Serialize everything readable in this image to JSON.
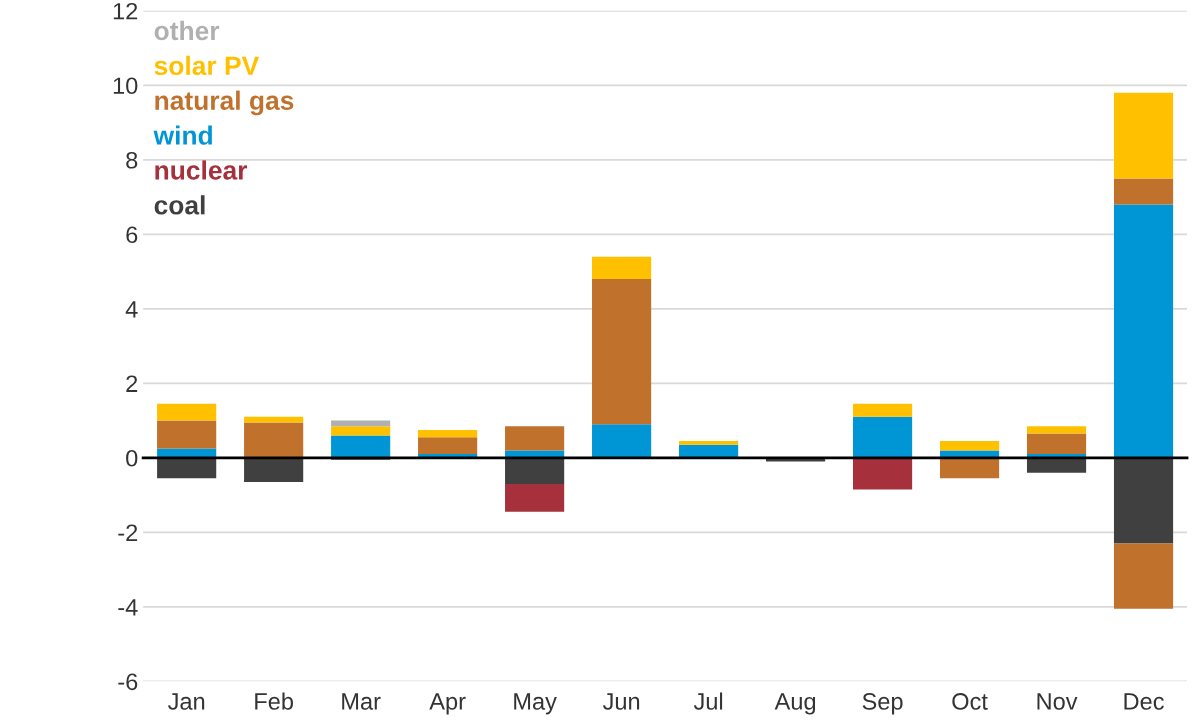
{
  "chart_data": {
    "type": "bar",
    "stacked": true,
    "categories": [
      "Jan",
      "Feb",
      "Mar",
      "Apr",
      "May",
      "Jun",
      "Jul",
      "Aug",
      "Sep",
      "Oct",
      "Nov",
      "Dec"
    ],
    "series": [
      {
        "name": "coal",
        "color": "#404040",
        "values": [
          -0.55,
          -0.65,
          -0.05,
          0,
          -0.7,
          0,
          0,
          -0.1,
          0,
          0,
          -0.4,
          -2.3
        ]
      },
      {
        "name": "nuclear",
        "color": "#a6303b",
        "values": [
          0,
          0,
          0,
          0,
          -0.75,
          0,
          0,
          0,
          -0.85,
          0,
          0,
          0
        ]
      },
      {
        "color": "#c0712b",
        "values": [
          0,
          0,
          0,
          0,
          0,
          0,
          0,
          0,
          0,
          -0.55,
          0,
          -1.75
        ]
      },
      {
        "name": "wind",
        "color": "#0096d6",
        "values": [
          0.25,
          0,
          0.6,
          0.1,
          0.2,
          0.9,
          0.35,
          0,
          1.1,
          0.2,
          0.1,
          6.8
        ]
      },
      {
        "name": "natural gas",
        "color": "#c0712b",
        "values": [
          0.75,
          0.95,
          0,
          0.45,
          0.65,
          3.9,
          0,
          0,
          0,
          0,
          0.55,
          0.7
        ]
      },
      {
        "name": "solar PV",
        "color": "#ffc000",
        "values": [
          0.45,
          0.15,
          0.25,
          0.2,
          0,
          0.6,
          0.1,
          0,
          0.35,
          0.25,
          0.2,
          2.3
        ]
      },
      {
        "name": "other",
        "color": "#b0b0b0",
        "values": [
          0,
          0,
          0.15,
          0,
          0,
          0,
          0,
          0,
          0,
          0,
          0,
          0
        ]
      }
    ],
    "ylim": [
      -6,
      12
    ],
    "yticks": [
      -6,
      -4,
      -2,
      0,
      2,
      4,
      6,
      8,
      10,
      12
    ],
    "grid": "y",
    "legend": "top left"
  }
}
